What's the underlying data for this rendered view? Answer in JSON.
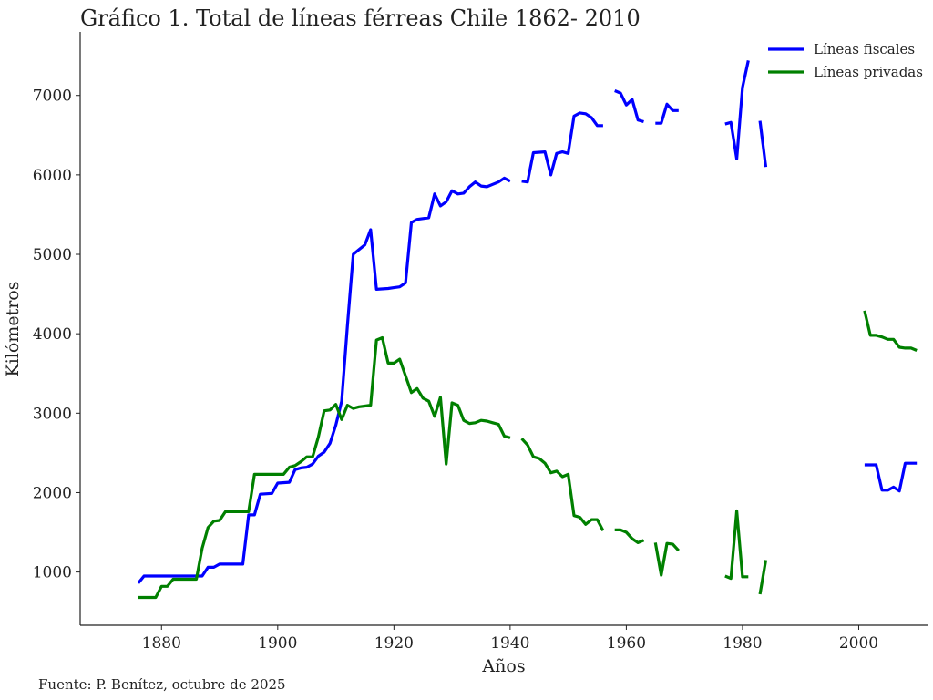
{
  "chart_data": {
    "type": "line",
    "title": "Gráfico 1. Total de líneas férreas Chile 1862- 2010",
    "xlabel": "Años",
    "ylabel": "Kilómetros",
    "source": "Fuente: P. Benítez, octubre de 2025",
    "xlim": [
      1866,
      2012
    ],
    "ylim": [
      330,
      7800
    ],
    "xticks": [
      1880,
      1900,
      1920,
      1940,
      1960,
      1980,
      2000
    ],
    "yticks": [
      1000,
      2000,
      3000,
      4000,
      5000,
      6000,
      7000
    ],
    "grid": false,
    "legend_position": "top-right",
    "series": [
      {
        "name": "Líneas fiscales",
        "color": "#0000ff",
        "segments": [
          [
            [
              1876,
              860
            ],
            [
              1877,
              950
            ],
            [
              1886,
              950
            ],
            [
              1887,
              950
            ],
            [
              1888,
              1060
            ],
            [
              1889,
              1060
            ],
            [
              1890,
              1100
            ],
            [
              1894,
              1100
            ],
            [
              1895,
              1720
            ],
            [
              1896,
              1720
            ],
            [
              1897,
              1980
            ],
            [
              1899,
              1990
            ],
            [
              1900,
              2120
            ],
            [
              1902,
              2130
            ],
            [
              1903,
              2290
            ],
            [
              1904,
              2310
            ],
            [
              1905,
              2320
            ],
            [
              1906,
              2360
            ],
            [
              1907,
              2460
            ],
            [
              1908,
              2510
            ],
            [
              1909,
              2620
            ],
            [
              1910,
              2850
            ],
            [
              1911,
              3150
            ],
            [
              1912,
              4100
            ],
            [
              1913,
              5000
            ],
            [
              1914,
              5060
            ],
            [
              1915,
              5120
            ],
            [
              1916,
              5310
            ],
            [
              1917,
              4560
            ],
            [
              1919,
              4570
            ],
            [
              1920,
              4580
            ],
            [
              1921,
              4590
            ],
            [
              1922,
              4640
            ],
            [
              1923,
              5400
            ],
            [
              1924,
              5440
            ],
            [
              1926,
              5460
            ],
            [
              1927,
              5760
            ],
            [
              1928,
              5610
            ],
            [
              1929,
              5660
            ],
            [
              1930,
              5800
            ],
            [
              1931,
              5760
            ],
            [
              1932,
              5770
            ],
            [
              1933,
              5850
            ],
            [
              1934,
              5910
            ],
            [
              1935,
              5860
            ],
            [
              1936,
              5850
            ],
            [
              1937,
              5880
            ],
            [
              1938,
              5910
            ],
            [
              1939,
              5960
            ],
            [
              1940,
              5920
            ]
          ],
          [
            [
              1942,
              5920
            ],
            [
              1943,
              5910
            ],
            [
              1944,
              6280
            ],
            [
              1946,
              6290
            ],
            [
              1947,
              6000
            ],
            [
              1948,
              6270
            ],
            [
              1949,
              6290
            ],
            [
              1950,
              6270
            ],
            [
              1951,
              6740
            ],
            [
              1952,
              6780
            ],
            [
              1953,
              6770
            ],
            [
              1954,
              6720
            ],
            [
              1955,
              6620
            ],
            [
              1956,
              6620
            ]
          ],
          [
            [
              1958,
              7060
            ],
            [
              1959,
              7030
            ],
            [
              1960,
              6880
            ],
            [
              1961,
              6950
            ],
            [
              1962,
              6690
            ],
            [
              1963,
              6670
            ]
          ],
          [
            [
              1965,
              6650
            ],
            [
              1966,
              6650
            ],
            [
              1967,
              6890
            ],
            [
              1968,
              6810
            ],
            [
              1969,
              6810
            ]
          ],
          [
            [
              1977,
              6640
            ],
            [
              1978,
              6660
            ],
            [
              1979,
              6200
            ],
            [
              1980,
              7100
            ],
            [
              1981,
              7440
            ]
          ],
          [
            [
              1983,
              6680
            ],
            [
              1984,
              6100
            ]
          ],
          [
            [
              2001,
              2350
            ],
            [
              2003,
              2350
            ],
            [
              2004,
              2030
            ],
            [
              2005,
              2030
            ],
            [
              2006,
              2070
            ],
            [
              2007,
              2020
            ],
            [
              2008,
              2370
            ],
            [
              2010,
              2370
            ]
          ]
        ]
      },
      {
        "name": "Líneas privadas",
        "color": "#008000",
        "segments": [
          [
            [
              1876,
              680
            ],
            [
              1877,
              680
            ],
            [
              1879,
              680
            ],
            [
              1880,
              820
            ],
            [
              1881,
              820
            ],
            [
              1882,
              910
            ],
            [
              1886,
              910
            ],
            [
              1887,
              1300
            ],
            [
              1888,
              1560
            ],
            [
              1889,
              1640
            ],
            [
              1890,
              1650
            ],
            [
              1891,
              1760
            ],
            [
              1895,
              1760
            ],
            [
              1896,
              2230
            ],
            [
              1901,
              2230
            ],
            [
              1902,
              2320
            ],
            [
              1903,
              2340
            ],
            [
              1904,
              2390
            ],
            [
              1905,
              2450
            ],
            [
              1906,
              2450
            ],
            [
              1907,
              2700
            ],
            [
              1908,
              3030
            ],
            [
              1909,
              3040
            ],
            [
              1910,
              3110
            ],
            [
              1911,
              2920
            ],
            [
              1912,
              3100
            ],
            [
              1913,
              3060
            ],
            [
              1914,
              3080
            ],
            [
              1915,
              3090
            ],
            [
              1916,
              3100
            ],
            [
              1917,
              3920
            ],
            [
              1918,
              3950
            ],
            [
              1919,
              3630
            ],
            [
              1920,
              3630
            ],
            [
              1921,
              3680
            ],
            [
              1922,
              3470
            ],
            [
              1923,
              3260
            ],
            [
              1924,
              3310
            ],
            [
              1925,
              3190
            ],
            [
              1926,
              3150
            ],
            [
              1927,
              2960
            ],
            [
              1928,
              3200
            ],
            [
              1929,
              2360
            ],
            [
              1930,
              3130
            ],
            [
              1931,
              3100
            ],
            [
              1932,
              2910
            ],
            [
              1933,
              2870
            ],
            [
              1934,
              2880
            ],
            [
              1935,
              2910
            ],
            [
              1936,
              2900
            ],
            [
              1937,
              2880
            ],
            [
              1938,
              2860
            ],
            [
              1939,
              2710
            ],
            [
              1940,
              2690
            ]
          ],
          [
            [
              1942,
              2680
            ],
            [
              1943,
              2600
            ],
            [
              1944,
              2450
            ],
            [
              1945,
              2430
            ],
            [
              1946,
              2370
            ],
            [
              1947,
              2250
            ],
            [
              1948,
              2270
            ],
            [
              1949,
              2200
            ],
            [
              1950,
              2230
            ],
            [
              1951,
              1710
            ],
            [
              1952,
              1690
            ],
            [
              1953,
              1600
            ],
            [
              1954,
              1660
            ],
            [
              1955,
              1660
            ],
            [
              1956,
              1520
            ]
          ],
          [
            [
              1958,
              1530
            ],
            [
              1959,
              1530
            ],
            [
              1960,
              1500
            ],
            [
              1961,
              1420
            ],
            [
              1962,
              1370
            ],
            [
              1963,
              1400
            ]
          ],
          [
            [
              1965,
              1370
            ],
            [
              1966,
              960
            ],
            [
              1967,
              1360
            ],
            [
              1968,
              1350
            ],
            [
              1969,
              1270
            ]
          ],
          [
            [
              1977,
              950
            ],
            [
              1978,
              920
            ],
            [
              1979,
              1770
            ],
            [
              1980,
              940
            ],
            [
              1981,
              940
            ]
          ],
          [
            [
              1983,
              720
            ],
            [
              1984,
              1150
            ]
          ],
          [
            [
              2001,
              4290
            ],
            [
              2002,
              3980
            ],
            [
              2003,
              3980
            ],
            [
              2004,
              3960
            ],
            [
              2005,
              3930
            ],
            [
              2006,
              3930
            ],
            [
              2007,
              3830
            ],
            [
              2008,
              3820
            ],
            [
              2009,
              3820
            ],
            [
              2010,
              3790
            ]
          ]
        ]
      }
    ]
  }
}
